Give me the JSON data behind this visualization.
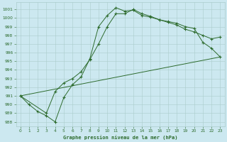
{
  "title": "Graphe pression niveau de la mer (hPa)",
  "background_color": "#cce8f0",
  "grid_color": "#aacccc",
  "line_color": "#2d6b2d",
  "xlim": [
    -0.5,
    23.5
  ],
  "ylim": [
    987.5,
    1001.8
  ],
  "xticks": [
    0,
    1,
    2,
    3,
    4,
    5,
    6,
    7,
    8,
    9,
    10,
    11,
    12,
    13,
    14,
    15,
    16,
    17,
    18,
    19,
    20,
    21,
    22,
    23
  ],
  "yticks": [
    988,
    989,
    990,
    991,
    992,
    993,
    994,
    995,
    996,
    997,
    998,
    999,
    1000,
    1001
  ],
  "series": [
    {
      "x": [
        0,
        1,
        2,
        3,
        4,
        5,
        6,
        7,
        8,
        9,
        10,
        11,
        12,
        13,
        14,
        15,
        16,
        17,
        18,
        19,
        20,
        21,
        22,
        23
      ],
      "y": [
        991.0,
        990.0,
        989.2,
        988.7,
        988.0,
        990.8,
        992.3,
        993.2,
        995.3,
        999.0,
        1000.3,
        1001.2,
        1000.8,
        1000.9,
        1000.3,
        1000.1,
        999.8,
        999.6,
        999.4,
        999.0,
        998.8,
        997.2,
        996.5,
        995.5
      ]
    },
    {
      "x": [
        0,
        3,
        4,
        5,
        6,
        7,
        8,
        9,
        10,
        11,
        12,
        13,
        14,
        15,
        16,
        17,
        18,
        19,
        20,
        21,
        22,
        23
      ],
      "y": [
        991.0,
        989.0,
        991.5,
        992.5,
        993.0,
        993.8,
        995.2,
        997.0,
        999.0,
        1000.5,
        1000.5,
        1001.0,
        1000.5,
        1000.2,
        999.8,
        999.5,
        999.2,
        998.7,
        998.4,
        998.0,
        997.6,
        997.8
      ]
    },
    {
      "x": [
        0,
        23
      ],
      "y": [
        991.0,
        995.5
      ]
    }
  ]
}
